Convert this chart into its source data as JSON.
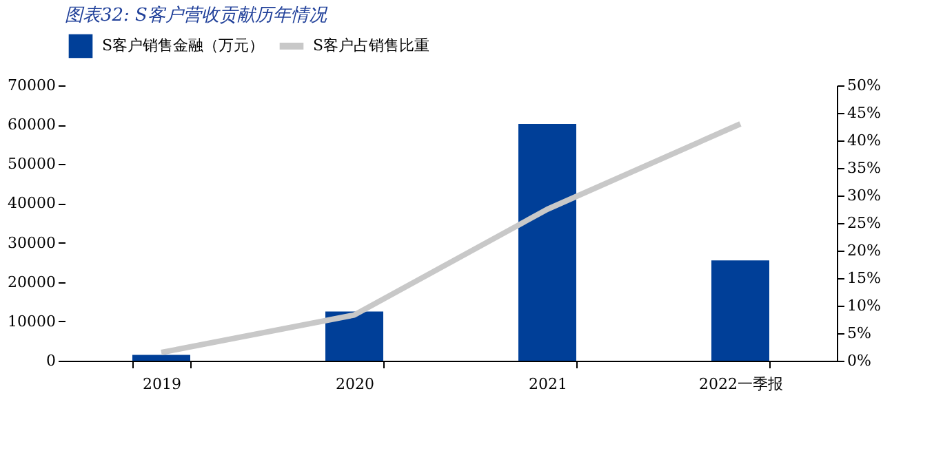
{
  "chart_data": {
    "type": "bar",
    "title": "图表32: S客户营收贡献历年情况",
    "categories": [
      "2019",
      "2020",
      "2021",
      "2022一季报"
    ],
    "series": [
      {
        "name": "S客户销售金融（万元）",
        "color": "#003f98",
        "values": [
          1500,
          12500,
          60200,
          25500
        ]
      },
      {
        "name": "S客户占销售比重",
        "type": "line",
        "axis": "y2",
        "color": "#c8c8c8",
        "values": [
          1.5,
          8.3,
          27.5,
          43
        ]
      }
    ],
    "ylim": [
      0,
      70000
    ],
    "yticks": [
      0,
      10000,
      20000,
      30000,
      40000,
      50000,
      60000,
      70000
    ],
    "y2lim": [
      0,
      50
    ],
    "y2ticks": [
      {
        "value": 0,
        "label": "0%"
      },
      {
        "value": 5,
        "label": "5%"
      },
      {
        "value": 10,
        "label": "10%"
      },
      {
        "value": 15,
        "label": "15%"
      },
      {
        "value": 20,
        "label": "20%"
      },
      {
        "value": 25,
        "label": "25%"
      },
      {
        "value": 30,
        "label": "30%"
      },
      {
        "value": 35,
        "label": "35%"
      },
      {
        "value": 40,
        "label": "40%"
      },
      {
        "value": 45,
        "label": "45%"
      },
      {
        "value": 50,
        "label": "50%"
      }
    ],
    "grid": false,
    "legend": "top"
  }
}
